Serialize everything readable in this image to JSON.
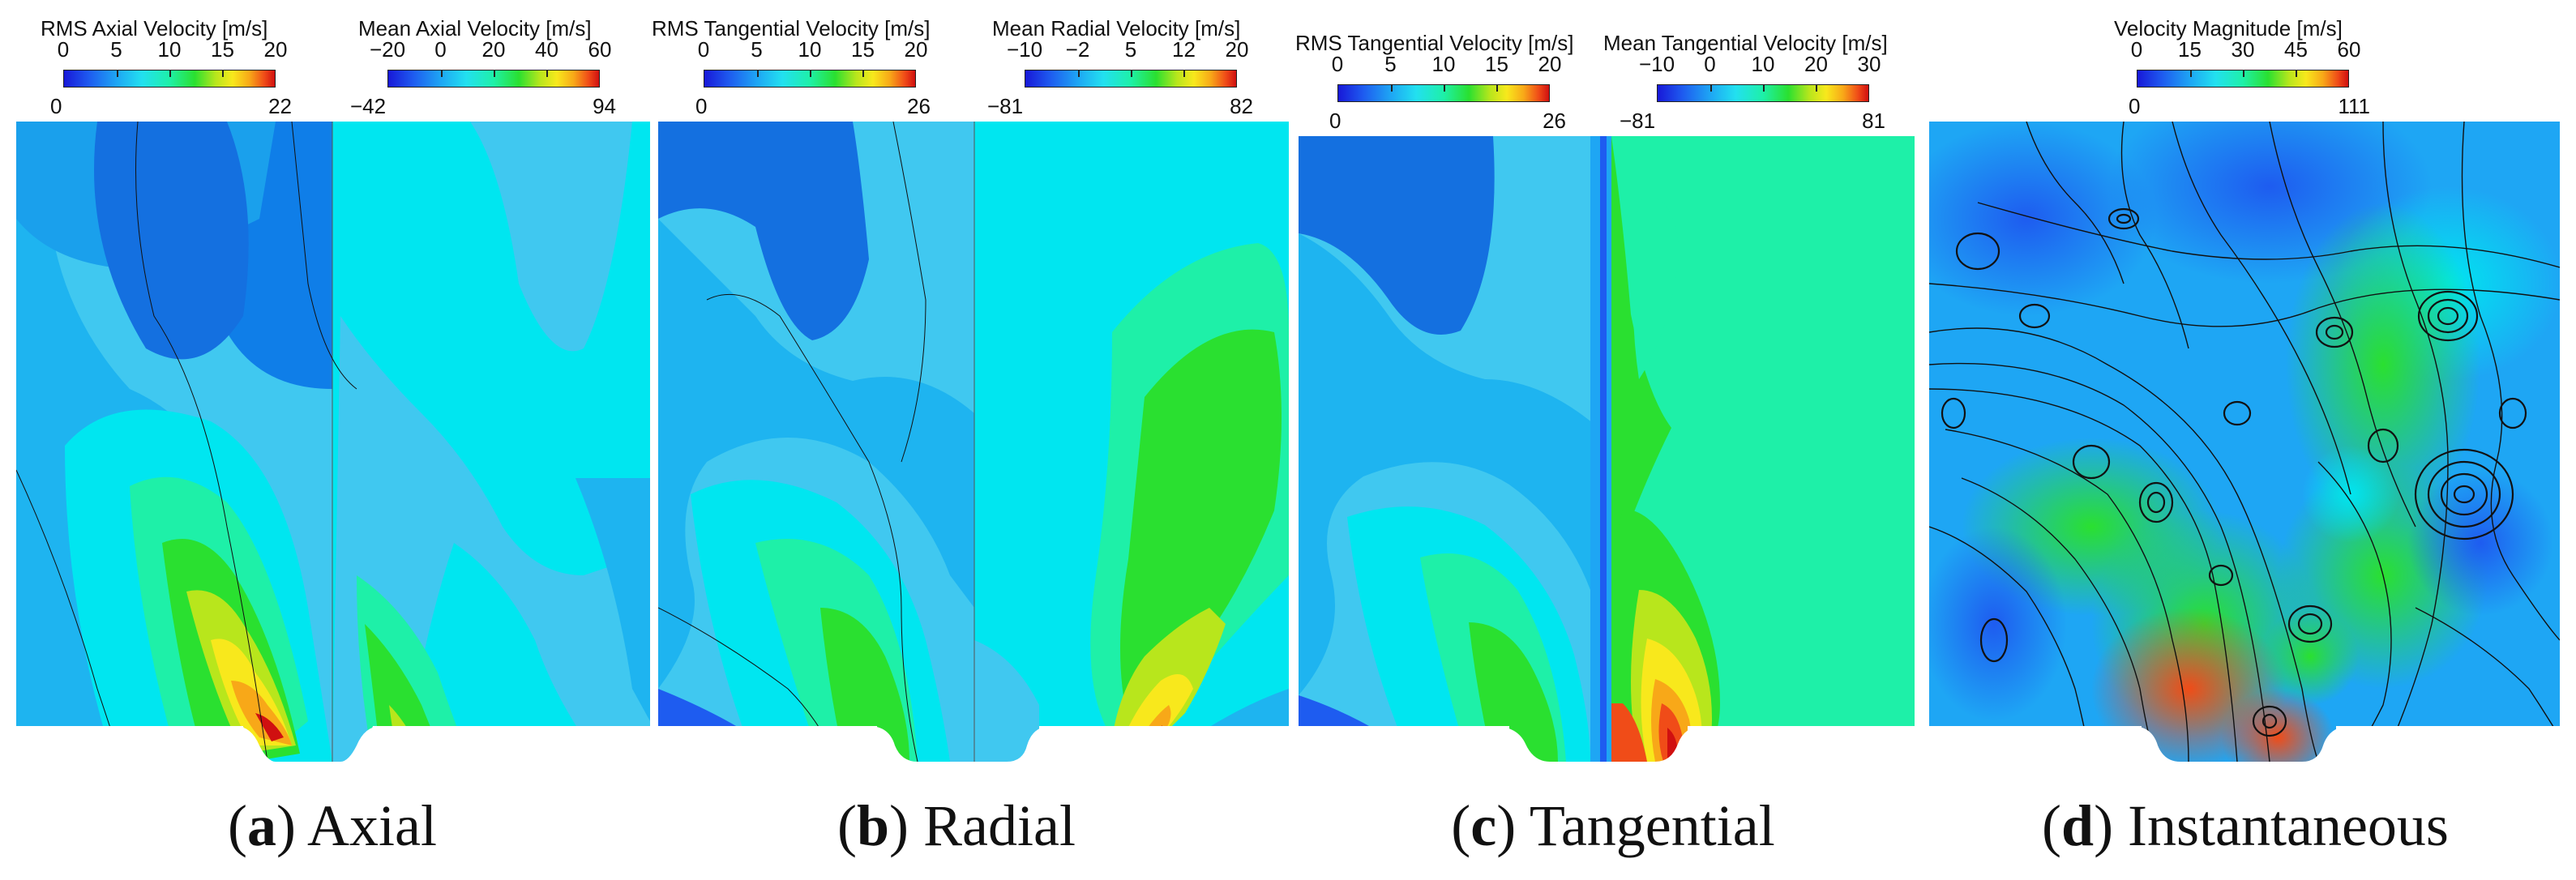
{
  "panels": [
    {
      "letter": "a",
      "name": "Axial",
      "left_bar": {
        "title": "RMS Axial Velocity [m/s]",
        "ticks": [
          "0",
          "5",
          "10",
          "15",
          "20"
        ],
        "min": "0",
        "max": "22"
      },
      "right_bar": {
        "title": "Mean Axial Velocity  [m/s]",
        "ticks": [
          "−20",
          "0",
          "20",
          "40",
          "60"
        ],
        "min": "−42",
        "max": "94"
      }
    },
    {
      "letter": "b",
      "name": "Radial",
      "left_bar": {
        "title": "RMS Tangential Velocity [m/s]",
        "ticks": [
          "0",
          "5",
          "10",
          "15",
          "20"
        ],
        "min": "0",
        "max": "26"
      },
      "right_bar": {
        "title": "Mean Radial Velocity [m/s]",
        "ticks": [
          "−10",
          "−2",
          "5",
          "12",
          "20"
        ],
        "min": "−81",
        "max": "82"
      }
    },
    {
      "letter": "c",
      "name": "Tangential",
      "left_bar": {
        "title": "RMS Tangential Velocity [m/s]",
        "ticks": [
          "0",
          "5",
          "10",
          "15",
          "20"
        ],
        "min": "0",
        "max": "26"
      },
      "right_bar": {
        "title": "Mean Tangential Velocity [m/s]",
        "ticks": [
          "−10",
          "0",
          "10",
          "20",
          "30"
        ],
        "min": "−81",
        "max": "81"
      }
    },
    {
      "letter": "d",
      "name": "Instantaneous",
      "bar": {
        "title": "Velocity Magnitude [m/s]",
        "ticks": [
          "0",
          "15",
          "30",
          "45",
          "60"
        ],
        "min": "0",
        "max": "111"
      }
    }
  ]
}
